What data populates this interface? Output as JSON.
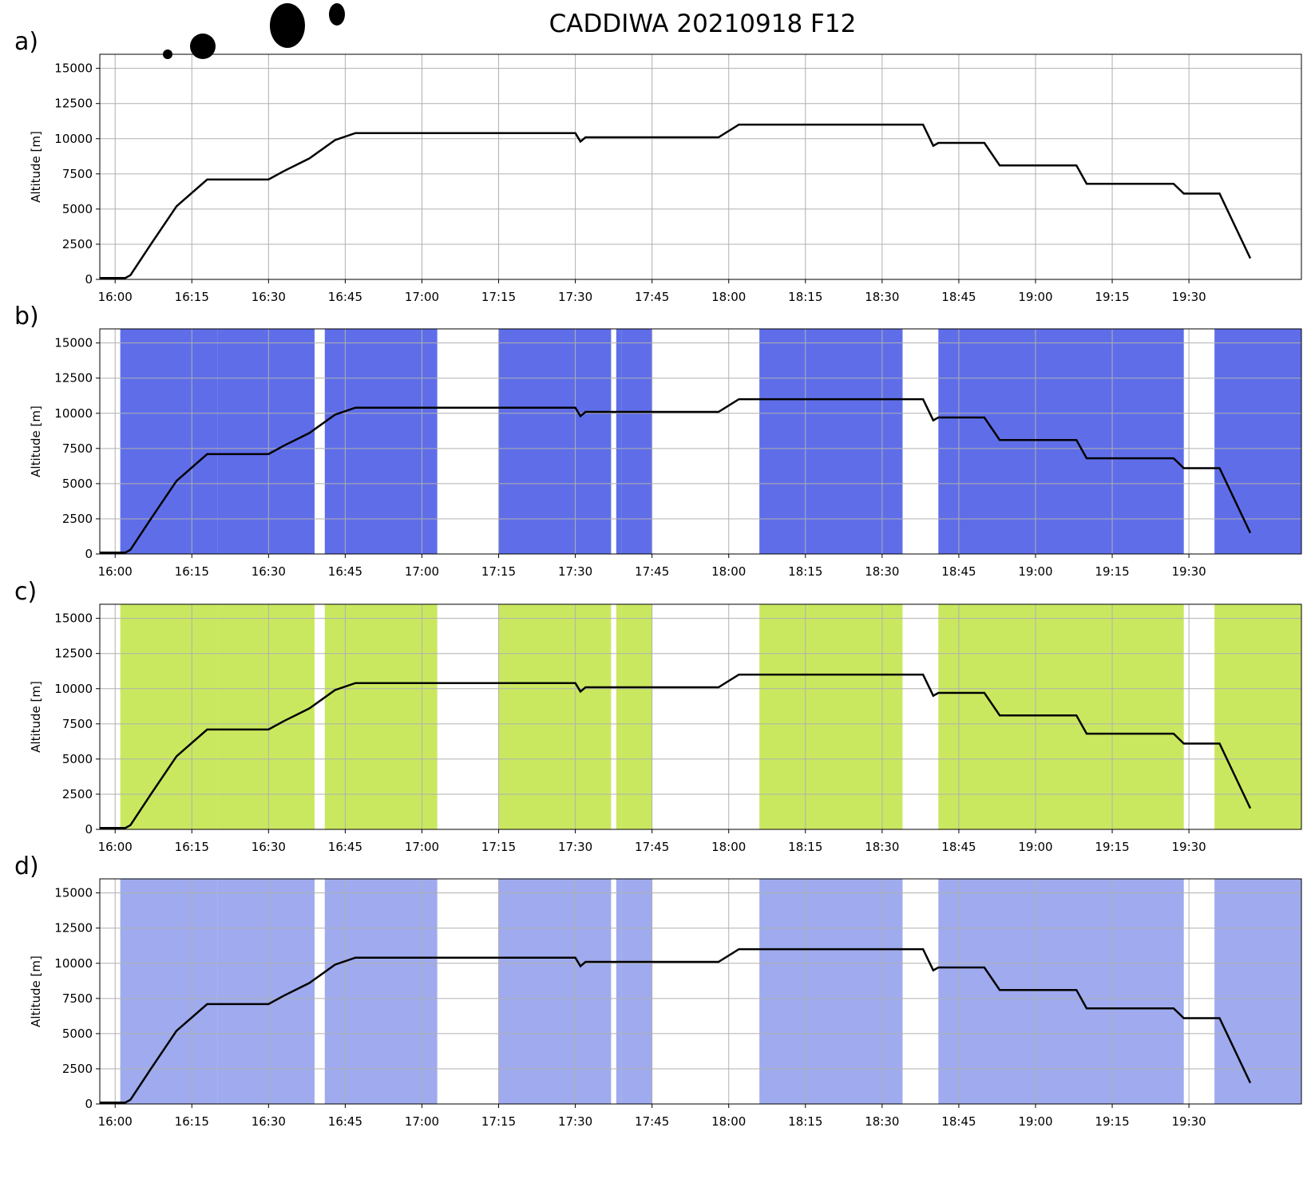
{
  "chart_data": [
    {
      "type": "line",
      "panel": "a)",
      "title": "CADDIWA 20210918 F12",
      "ylabel": "Altitude [m]",
      "xlim": [
        "15:57",
        "19:52"
      ],
      "xticks": [
        "16:00",
        "16:15",
        "16:30",
        "16:45",
        "17:00",
        "17:15",
        "17:30",
        "17:45",
        "18:00",
        "18:15",
        "18:30",
        "18:45",
        "19:00",
        "19:15",
        "19:30"
      ],
      "ylim": [
        0,
        16000
      ],
      "yticks": [
        0,
        2500,
        5000,
        7500,
        10000,
        12500,
        15000
      ],
      "grid": true,
      "x": [
        "15:57",
        "16:02",
        "16:03",
        "16:07",
        "16:12",
        "16:18",
        "16:30",
        "16:33",
        "16:38",
        "16:43",
        "16:47",
        "17:30",
        "17:31",
        "17:32",
        "17:58",
        "18:02",
        "18:38",
        "18:40",
        "18:41",
        "18:50",
        "18:53",
        "19:08",
        "19:10",
        "19:27",
        "19:29",
        "19:36",
        "19:42"
      ],
      "series": [
        {
          "color": "#000000",
          "values": [
            100,
            100,
            300,
            2500,
            5200,
            7100,
            7100,
            7700,
            8600,
            9900,
            10400,
            10400,
            9800,
            10100,
            10100,
            11000,
            11000,
            9500,
            9700,
            9700,
            8100,
            8100,
            6800,
            6800,
            6100,
            6100,
            1500
          ]
        }
      ]
    },
    {
      "type": "line",
      "panel": "b)",
      "ylabel": "Altitude [m]",
      "xlim": [
        "15:57",
        "19:52"
      ],
      "xticks": [
        "16:00",
        "16:15",
        "16:30",
        "16:45",
        "17:00",
        "17:15",
        "17:30",
        "17:45",
        "18:00",
        "18:15",
        "18:30",
        "18:45",
        "19:00",
        "19:15",
        "19:30"
      ],
      "ylim": [
        0,
        16000
      ],
      "yticks": [
        0,
        2500,
        5000,
        7500,
        10000,
        12500,
        15000
      ],
      "grid": true,
      "x": [
        "15:57",
        "16:02",
        "16:03",
        "16:07",
        "16:12",
        "16:18",
        "16:30",
        "16:33",
        "16:38",
        "16:43",
        "16:47",
        "17:30",
        "17:31",
        "17:32",
        "17:58",
        "18:02",
        "18:38",
        "18:40",
        "18:41",
        "18:50",
        "18:53",
        "19:08",
        "19:10",
        "19:27",
        "19:29",
        "19:36",
        "19:42"
      ],
      "series": [
        {
          "color": "#000000",
          "values": [
            100,
            100,
            300,
            2500,
            5200,
            7100,
            7100,
            7700,
            8600,
            9900,
            10400,
            10400,
            9800,
            10100,
            10100,
            11000,
            11000,
            9500,
            9700,
            9700,
            8100,
            8100,
            6800,
            6800,
            6100,
            6100,
            1500
          ]
        }
      ],
      "data_color": "#2a3ee0",
      "data_windows": [
        [
          "16:01",
          "16:20"
        ],
        [
          "16:20",
          "16:39"
        ],
        [
          "16:41",
          "17:03"
        ],
        [
          "17:15",
          "17:37"
        ],
        [
          "17:38",
          "17:39"
        ],
        [
          "17:39",
          "17:45"
        ],
        [
          "18:06",
          "18:34"
        ],
        [
          "18:41",
          "19:29"
        ],
        [
          "19:35",
          "19:52"
        ]
      ]
    },
    {
      "type": "line",
      "panel": "c)",
      "ylabel": "Altitude [m]",
      "xlim": [
        "15:57",
        "19:52"
      ],
      "xticks": [
        "16:00",
        "16:15",
        "16:30",
        "16:45",
        "17:00",
        "17:15",
        "17:30",
        "17:45",
        "18:00",
        "18:15",
        "18:30",
        "18:45",
        "19:00",
        "19:15",
        "19:30"
      ],
      "ylim": [
        0,
        16000
      ],
      "yticks": [
        0,
        2500,
        5000,
        7500,
        10000,
        12500,
        15000
      ],
      "grid": true,
      "x": [
        "15:57",
        "16:02",
        "16:03",
        "16:07",
        "16:12",
        "16:18",
        "16:30",
        "16:33",
        "16:38",
        "16:43",
        "16:47",
        "17:30",
        "17:31",
        "17:32",
        "17:58",
        "18:02",
        "18:38",
        "18:40",
        "18:41",
        "18:50",
        "18:53",
        "19:08",
        "19:10",
        "19:27",
        "19:29",
        "19:36",
        "19:42"
      ],
      "series": [
        {
          "color": "#000000",
          "values": [
            100,
            100,
            300,
            2500,
            5200,
            7100,
            7100,
            7700,
            8600,
            9900,
            10400,
            10400,
            9800,
            10100,
            10100,
            11000,
            11000,
            9500,
            9700,
            9700,
            8100,
            8100,
            6800,
            6800,
            6100,
            6100,
            1500
          ]
        }
      ],
      "data_color": "#b8e02a",
      "data_windows": [
        [
          "16:01",
          "16:20"
        ],
        [
          "16:20",
          "16:39"
        ],
        [
          "16:41",
          "17:03"
        ],
        [
          "17:15",
          "17:37"
        ],
        [
          "17:38",
          "17:39"
        ],
        [
          "17:39",
          "17:45"
        ],
        [
          "18:06",
          "18:34"
        ],
        [
          "18:41",
          "19:29"
        ],
        [
          "19:35",
          "19:52"
        ]
      ]
    },
    {
      "type": "line",
      "panel": "d)",
      "ylabel": "Altitude [m]",
      "xlim": [
        "15:57",
        "19:52"
      ],
      "xticks": [
        "16:00",
        "16:15",
        "16:30",
        "16:45",
        "17:00",
        "17:15",
        "17:30",
        "17:45",
        "18:00",
        "18:15",
        "18:30",
        "18:45",
        "19:00",
        "19:15",
        "19:30"
      ],
      "ylim": [
        0,
        16000
      ],
      "yticks": [
        0,
        2500,
        5000,
        7500,
        10000,
        12500,
        15000
      ],
      "grid": true,
      "x": [
        "15:57",
        "16:02",
        "16:03",
        "16:07",
        "16:12",
        "16:18",
        "16:30",
        "16:33",
        "16:38",
        "16:43",
        "16:47",
        "17:30",
        "17:31",
        "17:32",
        "17:58",
        "18:02",
        "18:38",
        "18:40",
        "18:41",
        "18:50",
        "18:53",
        "19:08",
        "19:10",
        "19:27",
        "19:29",
        "19:36",
        "19:42"
      ],
      "series": [
        {
          "color": "#000000",
          "values": [
            100,
            100,
            300,
            2500,
            5200,
            7100,
            7100,
            7700,
            8600,
            9900,
            10400,
            10400,
            9800,
            10100,
            10100,
            11000,
            11000,
            9500,
            9700,
            9700,
            8100,
            8100,
            6800,
            6800,
            6100,
            6100,
            1500
          ]
        }
      ],
      "data_color": "#7f8fe8",
      "data_windows": [
        [
          "16:01",
          "16:20"
        ],
        [
          "16:20",
          "16:39"
        ],
        [
          "16:41",
          "17:03"
        ],
        [
          "17:15",
          "17:37"
        ],
        [
          "17:38",
          "17:39"
        ],
        [
          "17:39",
          "17:45"
        ],
        [
          "18:06",
          "18:34"
        ],
        [
          "18:41",
          "19:29"
        ],
        [
          "19:35",
          "19:52"
        ]
      ]
    }
  ]
}
